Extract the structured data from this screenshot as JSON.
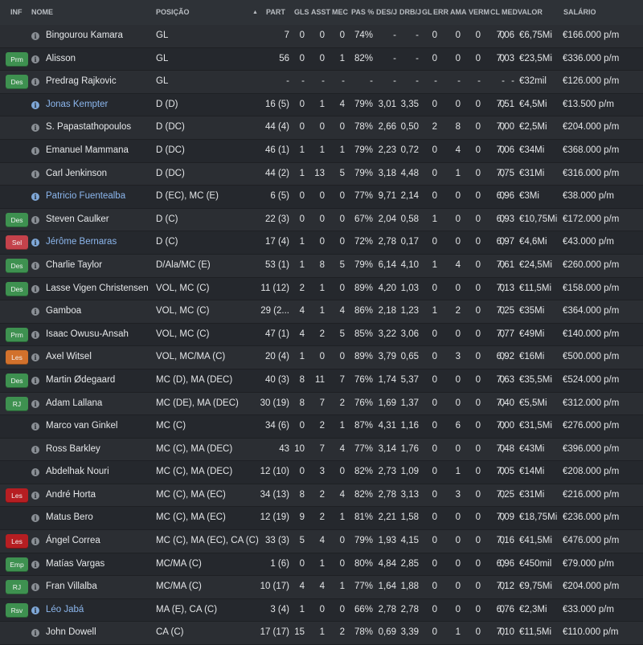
{
  "header": {
    "inf": "INF",
    "nome": "NOME",
    "posicao": "POSIÇÃO",
    "sort_glyph": "▲",
    "part": "PART",
    "gls": "GLS",
    "asst": "ASST",
    "mec": "MEC",
    "pas": "PAS %",
    "desj": "DES/J",
    "drbj": "DRB/J",
    "gl": "GL",
    "err": "ERR",
    "ama": "AMA",
    "verm": "VERM",
    "cl": "CL",
    "medvalor": "MED",
    "valor": "VALOR",
    "salario": "SALÁRIO"
  },
  "info_glyph": "i",
  "colors": {
    "badge_green": "#3e9150",
    "badge_red": "#b61e22",
    "badge_pink": "#c4424b",
    "badge_orange": "#d2712c",
    "link": "#8cb7ee"
  },
  "rows": [
    {
      "badge": "",
      "name": "Bingourou Kamara",
      "pos": "GL",
      "apps": "7",
      "gls": "0",
      "ast": "0",
      "mec": "0",
      "pas": "74%",
      "desj": "-",
      "drbj": "-",
      "gl": "0",
      "err": "0",
      "ama": "0",
      "verm": "0",
      "cl": "7,06",
      "val": "€6,75Mi",
      "sal": "€166.000 p/m"
    },
    {
      "badge": "Prm",
      "name": "Alisson",
      "pos": "GL",
      "apps": "56",
      "gls": "0",
      "ast": "0",
      "mec": "1",
      "pas": "82%",
      "desj": "-",
      "drbj": "-",
      "gl": "0",
      "err": "0",
      "ama": "0",
      "verm": "0",
      "cl": "7,03",
      "val": "€23,5Mi",
      "sal": "€336.000 p/m"
    },
    {
      "badge": "Des",
      "name": "Predrag Rajkovic",
      "pos": "GL",
      "apps": "-",
      "gls": "-",
      "ast": "-",
      "mec": "-",
      "pas": "-",
      "desj": "-",
      "drbj": "-",
      "gl": "-",
      "err": "-",
      "ama": "-",
      "verm": "-",
      "cl": "-",
      "val": "€32mil",
      "sal": "€126.000 p/m"
    },
    {
      "badge": "",
      "name": "Jonas Kempter",
      "link": true,
      "pos": "D (D)",
      "apps": "16 (5)",
      "gls": "0",
      "ast": "1",
      "mec": "4",
      "pas": "79%",
      "desj": "3,01",
      "drbj": "3,35",
      "gl": "0",
      "err": "0",
      "ama": "0",
      "verm": "0",
      "cl": "7,51",
      "val": "€4,5Mi",
      "sal": "€13.500 p/m"
    },
    {
      "badge": "",
      "name": "S. Papastathopoulos",
      "pos": "D (DC)",
      "apps": "44 (4)",
      "gls": "0",
      "ast": "0",
      "mec": "0",
      "pas": "78%",
      "desj": "2,66",
      "drbj": "0,50",
      "gl": "2",
      "err": "8",
      "ama": "0",
      "verm": "0",
      "cl": "7,00",
      "val": "€2,5Mi",
      "sal": "€204.000 p/m"
    },
    {
      "badge": "",
      "name": "Emanuel Mammana",
      "pos": "D (DC)",
      "apps": "46 (1)",
      "gls": "1",
      "ast": "1",
      "mec": "1",
      "pas": "79%",
      "desj": "2,23",
      "drbj": "0,72",
      "gl": "0",
      "err": "4",
      "ama": "0",
      "verm": "0",
      "cl": "7,06",
      "val": "€34Mi",
      "sal": "€368.000 p/m"
    },
    {
      "badge": "",
      "name": "Carl Jenkinson",
      "pos": "D (DC)",
      "apps": "44 (2)",
      "gls": "1",
      "ast": "13",
      "mec": "5",
      "pas": "79%",
      "desj": "3,18",
      "drbj": "4,48",
      "gl": "0",
      "err": "1",
      "ama": "0",
      "verm": "0",
      "cl": "7,75",
      "val": "€31Mi",
      "sal": "€316.000 p/m"
    },
    {
      "badge": "",
      "name": "Patricio Fuentealba",
      "link": true,
      "pos": "D (EC), MC (E)",
      "apps": "6 (5)",
      "gls": "0",
      "ast": "0",
      "mec": "0",
      "pas": "77%",
      "desj": "9,71",
      "drbj": "2,14",
      "gl": "0",
      "err": "0",
      "ama": "0",
      "verm": "0",
      "cl": "6,96",
      "val": "€3Mi",
      "sal": "€38.000 p/m"
    },
    {
      "badge": "Des",
      "name": "Steven Caulker",
      "pos": "D (C)",
      "apps": "22 (3)",
      "gls": "0",
      "ast": "0",
      "mec": "0",
      "pas": "67%",
      "desj": "2,04",
      "drbj": "0,58",
      "gl": "1",
      "err": "0",
      "ama": "0",
      "verm": "0",
      "cl": "6,93",
      "val": "€10,75Mi",
      "sal": "€172.000 p/m"
    },
    {
      "badge": "Sel",
      "name": "Jérôme Bernaras",
      "link": true,
      "pos": "D (C)",
      "apps": "17 (4)",
      "gls": "1",
      "ast": "0",
      "mec": "0",
      "pas": "72%",
      "desj": "2,78",
      "drbj": "0,17",
      "gl": "0",
      "err": "0",
      "ama": "0",
      "verm": "0",
      "cl": "6,97",
      "val": "€4,6Mi",
      "sal": "€43.000 p/m"
    },
    {
      "badge": "Des",
      "name": "Charlie Taylor",
      "pos": "D/Ala/MC (E)",
      "apps": "53 (1)",
      "gls": "1",
      "ast": "8",
      "mec": "5",
      "pas": "79%",
      "desj": "6,14",
      "drbj": "4,10",
      "gl": "1",
      "err": "4",
      "ama": "0",
      "verm": "0",
      "cl": "7,61",
      "val": "€24,5Mi",
      "sal": "€260.000 p/m"
    },
    {
      "badge": "Des",
      "name": "Lasse Vigen Christensen",
      "pos": "VOL, MC (C)",
      "apps": "11 (12)",
      "gls": "2",
      "ast": "1",
      "mec": "0",
      "pas": "89%",
      "desj": "4,20",
      "drbj": "1,03",
      "gl": "0",
      "err": "0",
      "ama": "0",
      "verm": "0",
      "cl": "7,13",
      "val": "€11,5Mi",
      "sal": "€158.000 p/m"
    },
    {
      "badge": "",
      "name": "Gamboa",
      "pos": "VOL, MC (C)",
      "apps": "29 (2...",
      "gls": "4",
      "ast": "1",
      "mec": "4",
      "pas": "86%",
      "desj": "2,18",
      "drbj": "1,23",
      "gl": "1",
      "err": "2",
      "ama": "0",
      "verm": "0",
      "cl": "7,25",
      "val": "€35Mi",
      "sal": "€364.000 p/m"
    },
    {
      "badge": "Prm",
      "name": "Isaac Owusu-Ansah",
      "pos": "VOL, MC (C)",
      "apps": "47 (1)",
      "gls": "4",
      "ast": "2",
      "mec": "5",
      "pas": "85%",
      "desj": "3,22",
      "drbj": "3,06",
      "gl": "0",
      "err": "0",
      "ama": "0",
      "verm": "0",
      "cl": "7,77",
      "val": "€49Mi",
      "sal": "€140.000 p/m"
    },
    {
      "badge": "Les",
      "name": "Axel Witsel",
      "pos": "VOL, MC/MA (C)",
      "apps": "20 (4)",
      "gls": "1",
      "ast": "0",
      "mec": "0",
      "pas": "89%",
      "desj": "3,79",
      "drbj": "0,65",
      "gl": "0",
      "err": "3",
      "ama": "0",
      "verm": "0",
      "cl": "6,92",
      "val": "€16Mi",
      "sal": "€500.000 p/m"
    },
    {
      "badge": "Des",
      "name": "Martin Ødegaard",
      "pos": "MC (D), MA (DEC)",
      "apps": "40 (3)",
      "gls": "8",
      "ast": "11",
      "mec": "7",
      "pas": "76%",
      "desj": "1,74",
      "drbj": "5,37",
      "gl": "0",
      "err": "0",
      "ama": "0",
      "verm": "0",
      "cl": "7,63",
      "val": "€35,5Mi",
      "sal": "€524.000 p/m"
    },
    {
      "badge": "RJ",
      "name": "Adam Lallana",
      "pos": "MC (DE), MA (DEC)",
      "apps": "30 (19)",
      "gls": "8",
      "ast": "7",
      "mec": "2",
      "pas": "76%",
      "desj": "1,69",
      "drbj": "1,37",
      "gl": "0",
      "err": "0",
      "ama": "0",
      "verm": "0",
      "cl": "7,40",
      "val": "€5,5Mi",
      "sal": "€312.000 p/m"
    },
    {
      "badge": "",
      "name": "Marco van Ginkel",
      "pos": "MC (C)",
      "apps": "34 (6)",
      "gls": "0",
      "ast": "2",
      "mec": "1",
      "pas": "87%",
      "desj": "4,31",
      "drbj": "1,16",
      "gl": "0",
      "err": "6",
      "ama": "0",
      "verm": "0",
      "cl": "7,00",
      "val": "€31,5Mi",
      "sal": "€276.000 p/m"
    },
    {
      "badge": "",
      "name": "Ross Barkley",
      "pos": "MC (C), MA (DEC)",
      "apps": "43",
      "gls": "10",
      "ast": "7",
      "mec": "4",
      "pas": "77%",
      "desj": "3,14",
      "drbj": "1,76",
      "gl": "0",
      "err": "0",
      "ama": "0",
      "verm": "0",
      "cl": "7,48",
      "val": "€43Mi",
      "sal": "€396.000 p/m"
    },
    {
      "badge": "",
      "name": "Abdelhak Nouri",
      "pos": "MC (C), MA (DEC)",
      "apps": "12 (10)",
      "gls": "0",
      "ast": "3",
      "mec": "0",
      "pas": "82%",
      "desj": "2,73",
      "drbj": "1,09",
      "gl": "0",
      "err": "1",
      "ama": "0",
      "verm": "0",
      "cl": "7,05",
      "val": "€14Mi",
      "sal": "€208.000 p/m"
    },
    {
      "badge": "Les",
      "name": "André Horta",
      "pos": "MC (C), MA (EC)",
      "apps": "34 (13)",
      "gls": "8",
      "ast": "2",
      "mec": "4",
      "pas": "82%",
      "desj": "2,78",
      "drbj": "3,13",
      "gl": "0",
      "err": "3",
      "ama": "0",
      "verm": "0",
      "cl": "7,25",
      "val": "€31Mi",
      "sal": "€216.000 p/m"
    },
    {
      "badge": "",
      "name": "Matus Bero",
      "pos": "MC (C), MA (EC)",
      "apps": "12 (19)",
      "gls": "9",
      "ast": "2",
      "mec": "1",
      "pas": "81%",
      "desj": "2,21",
      "drbj": "1,58",
      "gl": "0",
      "err": "0",
      "ama": "0",
      "verm": "0",
      "cl": "7,09",
      "val": "€18,75Mi",
      "sal": "€236.000 p/m"
    },
    {
      "badge": "Les",
      "name": "Ángel Correa",
      "pos": "MC (C), MA (EC), CA (C)",
      "apps": "33 (3)",
      "gls": "5",
      "ast": "4",
      "mec": "0",
      "pas": "79%",
      "desj": "1,93",
      "drbj": "4,15",
      "gl": "0",
      "err": "0",
      "ama": "0",
      "verm": "0",
      "cl": "7,16",
      "val": "€41,5Mi",
      "sal": "€476.000 p/m"
    },
    {
      "badge": "Emp",
      "name": "Matías Vargas",
      "pos": "MC/MA (C)",
      "apps": "1 (6)",
      "gls": "0",
      "ast": "1",
      "mec": "0",
      "pas": "80%",
      "desj": "4,84",
      "drbj": "2,85",
      "gl": "0",
      "err": "0",
      "ama": "0",
      "verm": "0",
      "cl": "6,96",
      "val": "€450mil",
      "sal": "€79.000 p/m"
    },
    {
      "badge": "RJ",
      "name": "Fran Villalba",
      "pos": "MC/MA (C)",
      "apps": "10 (17)",
      "gls": "4",
      "ast": "4",
      "mec": "1",
      "pas": "77%",
      "desj": "1,64",
      "drbj": "1,88",
      "gl": "0",
      "err": "0",
      "ama": "0",
      "verm": "0",
      "cl": "7,12",
      "val": "€9,75Mi",
      "sal": "€204.000 p/m"
    },
    {
      "badge": "Rsv",
      "name": "Léo Jabá",
      "link": true,
      "pos": "MA (E), CA (C)",
      "apps": "3 (4)",
      "gls": "1",
      "ast": "0",
      "mec": "0",
      "pas": "66%",
      "desj": "2,78",
      "drbj": "2,78",
      "gl": "0",
      "err": "0",
      "ama": "0",
      "verm": "0",
      "cl": "6,76",
      "val": "€2,3Mi",
      "sal": "€33.000 p/m"
    },
    {
      "badge": "",
      "name": "John Dowell",
      "pos": "CA (C)",
      "apps": "17 (17)",
      "gls": "15",
      "ast": "1",
      "mec": "2",
      "pas": "78%",
      "desj": "0,69",
      "drbj": "3,39",
      "gl": "0",
      "err": "1",
      "ama": "0",
      "verm": "0",
      "cl": "7,10",
      "val": "€11,5Mi",
      "sal": "€110.000 p/m"
    }
  ]
}
